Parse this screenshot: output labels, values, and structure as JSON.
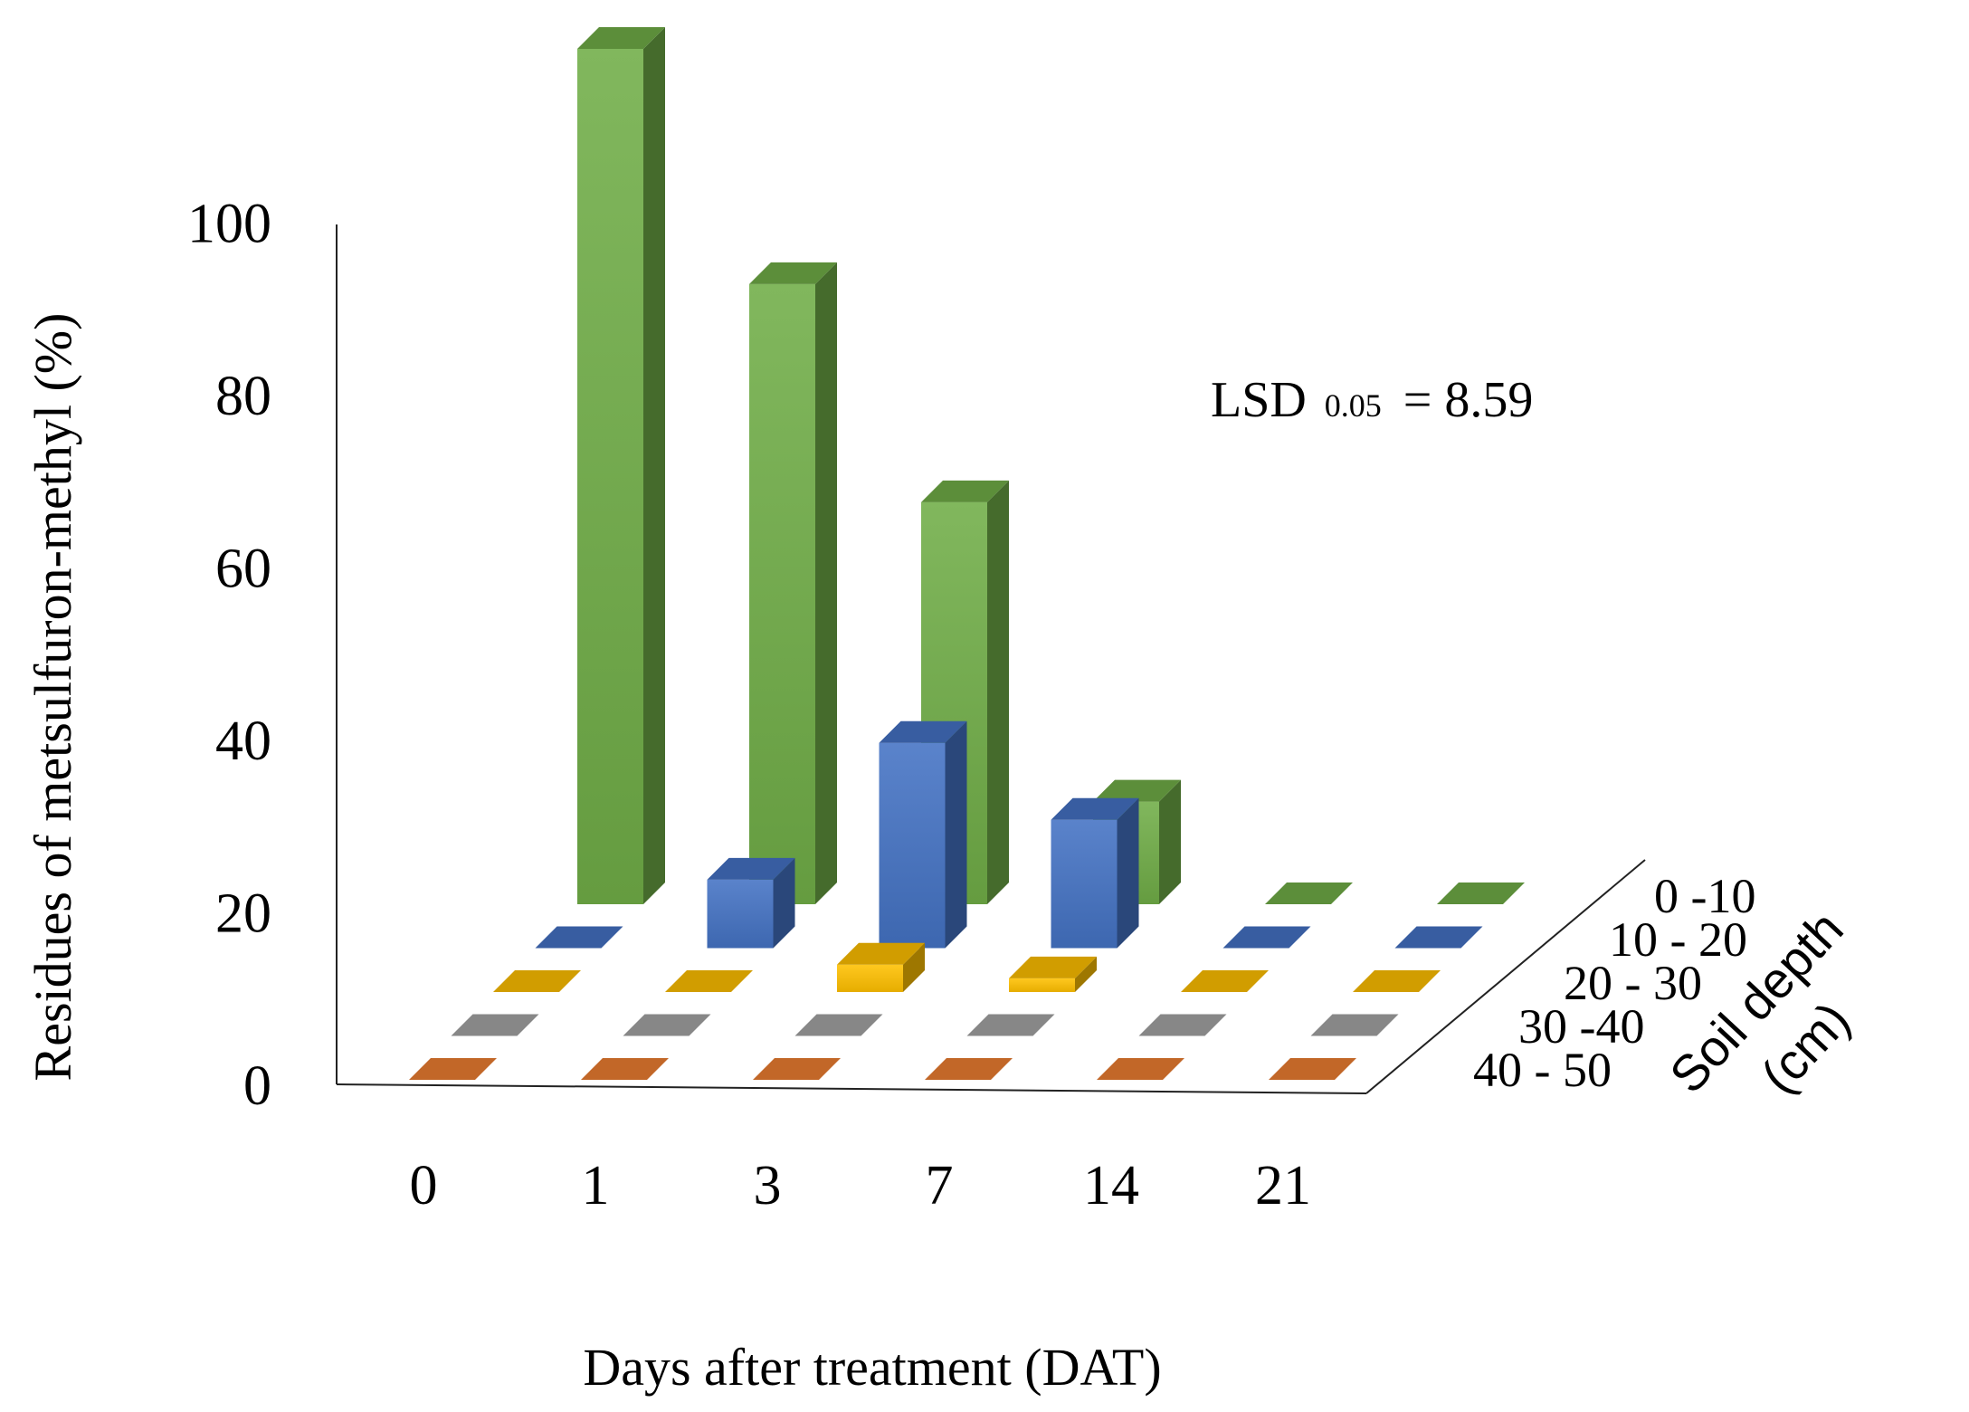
{
  "chart_data": {
    "type": "bar",
    "style": "3d-column",
    "title": "",
    "xlabel": "Days after treatment (DAT)",
    "ylabel": "Residues of metsulfuron-methyl (%)",
    "zlabel_line1": "Soil depth",
    "zlabel_line2": "(cm)",
    "categories": [
      "0",
      "1",
      "3",
      "7",
      "14",
      "21"
    ],
    "yticks": [
      "0",
      "20",
      "40",
      "60",
      "80",
      "100"
    ],
    "ylim": [
      0,
      100
    ],
    "annotation": {
      "prefix": "LSD",
      "subscript": "0.05",
      "suffix": "= 8.59"
    },
    "series": [
      {
        "name": "0 -10",
        "values": [
          100,
          72.5,
          47,
          12,
          0,
          0
        ],
        "color": "#70ad47"
      },
      {
        "name": "10 - 20",
        "values": [
          0,
          8,
          24,
          15,
          0,
          0
        ],
        "color": "#4472c4"
      },
      {
        "name": "20 - 30",
        "values": [
          0,
          0,
          3.2,
          1.6,
          0,
          0
        ],
        "color": "#ffc000"
      },
      {
        "name": "30 -40",
        "values": [
          0,
          0,
          0,
          0,
          0,
          0
        ],
        "color": "#a5a5a5"
      },
      {
        "name": "40 - 50",
        "values": [
          0,
          0,
          0,
          0,
          0,
          0
        ],
        "color": "#ed7d31"
      }
    ]
  }
}
